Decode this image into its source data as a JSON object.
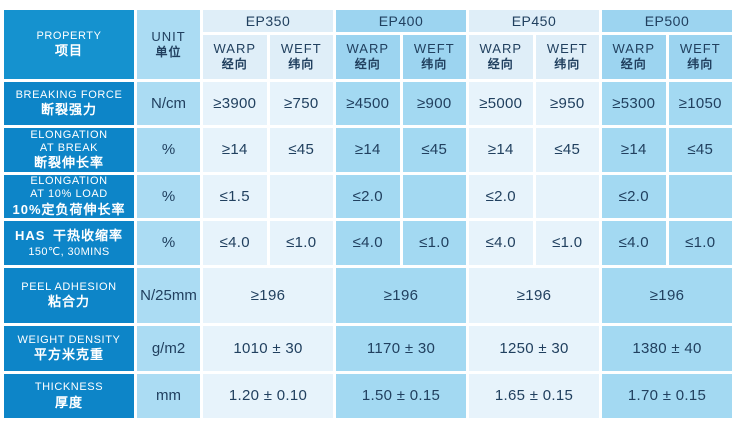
{
  "table": {
    "property_header": {
      "en": "PROPERTY",
      "zh": "项目"
    },
    "unit_header": {
      "en": "UNIT",
      "zh": "单位"
    },
    "groups": [
      "EP350",
      "EP400",
      "EP450",
      "EP500"
    ],
    "warp": {
      "en": "WARP",
      "zh": "经向"
    },
    "weft": {
      "en": "WEFT",
      "zh": "纬向"
    },
    "rows": [
      {
        "en": [
          "BREAKING FORCE"
        ],
        "zh": "断裂强力",
        "unit": "N/cm",
        "cells": [
          "≥3900",
          "≥750",
          "≥4500",
          "≥900",
          "≥5000",
          "≥950",
          "≥5300",
          "≥1050"
        ]
      },
      {
        "en": [
          "ELONGATION",
          "AT BREAK"
        ],
        "zh": "断裂伸长率",
        "unit": "%",
        "cells": [
          "≥14",
          "≤45",
          "≥14",
          "≤45",
          "≥14",
          "≤45",
          "≥14",
          "≤45"
        ]
      },
      {
        "en": [
          "ELONGATION",
          "AT 10% LOAD"
        ],
        "zh": "10%定负荷伸长率",
        "unit": "%",
        "cells": [
          "≤1.5",
          "",
          "≤2.0",
          "",
          "≤2.0",
          "",
          "≤2.0",
          ""
        ]
      },
      {
        "en": [
          "HAS"
        ],
        "zh": "干热收缩率",
        "inline": true,
        "sub": "150℃, 30MINS",
        "unit": "%",
        "cells": [
          "≤4.0",
          "≤1.0",
          "≤4.0",
          "≤1.0",
          "≤4.0",
          "≤1.0",
          "≤4.0",
          "≤1.0"
        ]
      },
      {
        "en": [
          "PEEL ADHESION"
        ],
        "zh": "粘合力",
        "unit": "N/25mm",
        "merged": [
          "≥196",
          "≥196",
          "≥196",
          "≥196"
        ]
      },
      {
        "en": [
          "WEIGHT DENSITY"
        ],
        "zh": "平方米克重",
        "unit": "g/m2",
        "merged": [
          "1010 ± 30",
          "1170 ± 30",
          "1250 ± 30",
          "1380 ± 40"
        ]
      },
      {
        "en": [
          "THICKNESS"
        ],
        "zh": "厚度",
        "unit": "mm",
        "merged": [
          "1.20 ± 0.10",
          "1.50 ± 0.15",
          "1.65 ± 0.15",
          "1.70 ± 0.15"
        ]
      }
    ]
  },
  "colors": {
    "property_header_blue": "#1592cf",
    "property_row_blue": "#0d85c8",
    "unit_column_blue": "#abdcf3",
    "group_pale_header": "#dfeef8",
    "group_pale_body": "#e7f3fb",
    "group_medium_header": "#9cd4f0",
    "group_medium_body": "#a3d9f2",
    "text_navy": "#21405f",
    "text_white": "#ffffff"
  }
}
